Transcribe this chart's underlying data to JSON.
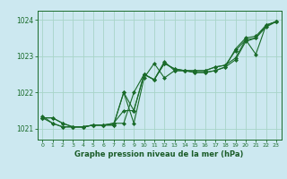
{
  "background_color": "#cce8f0",
  "grid_color": "#a8d4c8",
  "line_color": "#1a6b2a",
  "marker_color": "#1a6b2a",
  "title": "Graphe pression niveau de la mer (hPa)",
  "title_color": "#1a5c28",
  "xlim": [
    -0.5,
    23.5
  ],
  "ylim": [
    1020.7,
    1024.25
  ],
  "xticks": [
    0,
    1,
    2,
    3,
    4,
    5,
    6,
    7,
    8,
    9,
    10,
    11,
    12,
    13,
    14,
    15,
    16,
    17,
    18,
    19,
    20,
    21,
    22,
    23
  ],
  "yticks": [
    1021,
    1022,
    1023,
    1024
  ],
  "series": [
    [
      1021.3,
      1021.3,
      1021.15,
      1021.05,
      1021.05,
      1021.1,
      1021.1,
      1021.1,
      1022.0,
      1021.15,
      1022.4,
      1022.8,
      1022.4,
      1022.6,
      1022.6,
      1022.55,
      1022.55,
      1022.6,
      1022.7,
      1023.2,
      1023.5,
      1023.55,
      1023.85,
      1023.95
    ],
    [
      1021.3,
      1021.3,
      1021.15,
      1021.05,
      1021.05,
      1021.1,
      1021.1,
      1021.1,
      1022.0,
      1021.5,
      1022.5,
      1022.35,
      1022.85,
      1022.6,
      1022.6,
      1022.55,
      1022.55,
      1022.6,
      1022.7,
      1022.9,
      1023.4,
      1023.5,
      1023.8,
      1023.95
    ],
    [
      1021.3,
      1021.15,
      1021.05,
      1021.05,
      1021.05,
      1021.1,
      1021.1,
      1021.15,
      1021.5,
      1021.5,
      1022.5,
      1022.35,
      1022.8,
      1022.65,
      1022.6,
      1022.6,
      1022.6,
      1022.7,
      1022.75,
      1022.95,
      1023.45,
      1023.5,
      1023.85,
      1023.95
    ],
    [
      1021.35,
      1021.15,
      1021.05,
      1021.05,
      1021.05,
      1021.1,
      1021.1,
      1021.15,
      1021.15,
      1022.0,
      1022.5,
      1022.35,
      1022.8,
      1022.65,
      1022.6,
      1022.6,
      1022.6,
      1022.7,
      1022.75,
      1023.15,
      1023.45,
      1023.05,
      1023.85,
      1023.95
    ]
  ],
  "figsize": [
    3.2,
    2.0
  ],
  "dpi": 100
}
